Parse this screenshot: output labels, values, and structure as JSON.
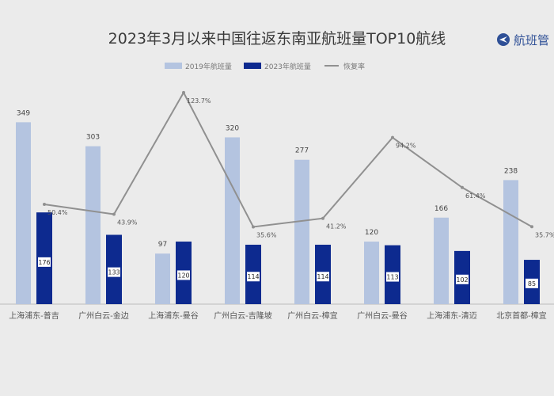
{
  "brand": {
    "name": "航班管"
  },
  "chart_data": {
    "type": "bar",
    "title": "2023年3月以来中国往返东南亚航班量TOP10航线",
    "legend": [
      "2019年航班量",
      "2023年航班量",
      "恢复率"
    ],
    "legend_position": "top",
    "categories": [
      "上海浦东-普吉",
      "广州白云-金边",
      "上海浦东-曼谷",
      "广州白云-吉隆坡",
      "广州白云-樟宜",
      "广州白云-曼谷",
      "上海浦东-清迈",
      "北京首都-樟宜"
    ],
    "series": [
      {
        "name": "2019年航班量",
        "type": "bar",
        "color": "#b4c4e0",
        "values": [
          349,
          303,
          97,
          320,
          277,
          120,
          166,
          238
        ]
      },
      {
        "name": "2023年航班量",
        "type": "bar",
        "color": "#0d2a8f",
        "values": [
          176,
          133,
          120,
          114,
          114,
          113,
          102,
          85
        ]
      },
      {
        "name": "恢复率",
        "type": "line",
        "color": "#909090",
        "values": [
          50.4,
          43.9,
          123.7,
          35.6,
          41.2,
          94.2,
          61.4,
          35.7
        ]
      }
    ],
    "data_labels": {
      "2019": [
        "349",
        "303",
        "97",
        "320",
        "277",
        "120",
        "166",
        "238"
      ],
      "2023": [
        "176",
        "133",
        "120",
        "114",
        "114",
        "113",
        "102",
        "85"
      ],
      "rate": [
        "50.4%",
        "43.9%",
        "123.7%",
        "35.6%",
        "41.2%",
        "94.2%",
        "61.4%",
        "35.7%"
      ]
    },
    "grid": false
  }
}
